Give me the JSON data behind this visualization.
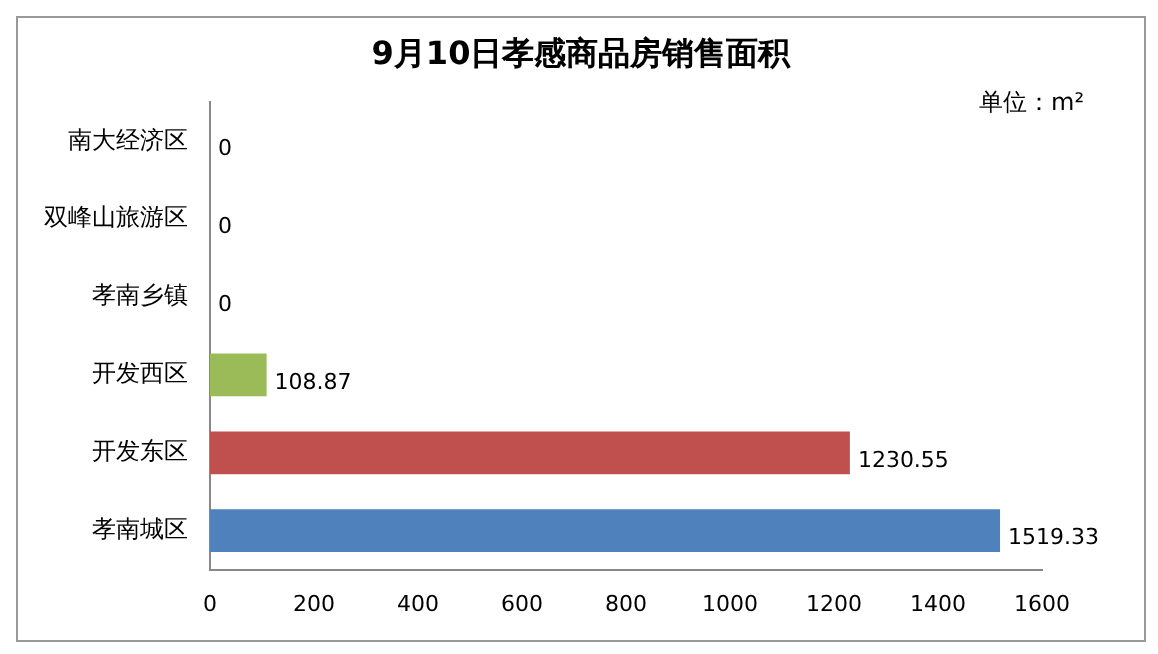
{
  "chart_data": {
    "type": "bar",
    "orientation": "horizontal",
    "title": "9月10日孝感商品房销售面积",
    "annotations": [
      "单位：m²"
    ],
    "categories": [
      "南大经济区",
      "双峰山旅游区",
      "孝南乡镇",
      "开发西区",
      "开发东区",
      "孝南城区"
    ],
    "values": [
      0,
      0,
      0,
      108.87,
      1230.55,
      1519.33
    ],
    "colors": [
      "#4f81bd",
      "#4f81bd",
      "#4f81bd",
      "#9bbb59",
      "#c0504d",
      "#4f81bd"
    ],
    "xlim": [
      0,
      1600
    ],
    "xticks": [
      0,
      200,
      400,
      600,
      800,
      1000,
      1200,
      1400,
      1600
    ],
    "data_labels": true,
    "legend": false,
    "grid": false
  }
}
